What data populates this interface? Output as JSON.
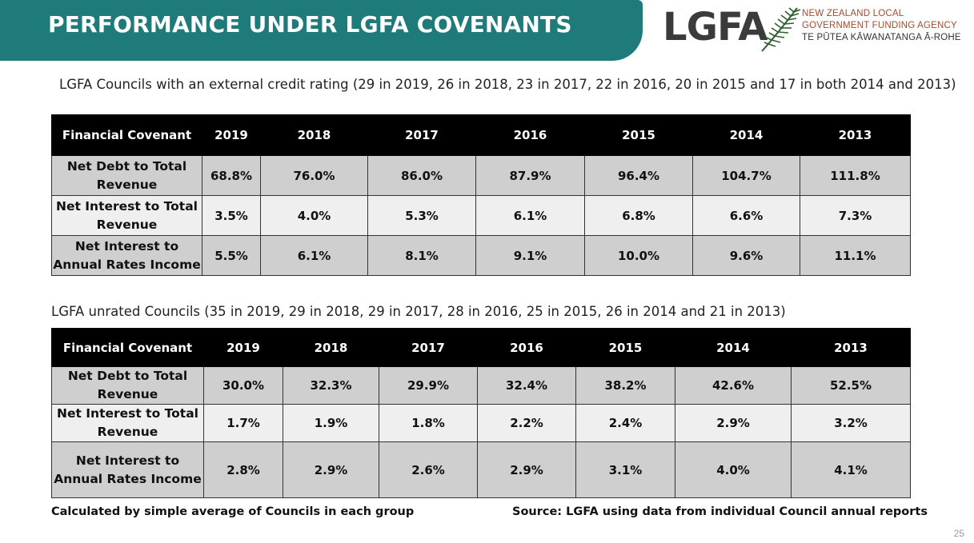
{
  "header": {
    "title": "PERFORMANCE UNDER LGFA COVENANTS"
  },
  "logo": {
    "wordmark": "LGFA",
    "line1": "NEW ZEALAND LOCAL",
    "line2": "GOVERNMENT FUNDING AGENCY",
    "line3": "TE PŪTEA KĀWANATANGA Ā-ROHE",
    "icon": "fern-icon"
  },
  "rated": {
    "caption": "LGFA Councils with an external credit rating (29 in 2019, 26 in 2018, 23 in 2017, 22 in 2016, 20 in 2015 and 17 in both 2014 and 2013)",
    "headers": [
      "Financial Covenant",
      "2019",
      "2018",
      "2017",
      "2016",
      "2015",
      "2014",
      "2013"
    ],
    "rows": [
      {
        "label": "Net Debt to Total Revenue",
        "values": [
          "68.8%",
          "76.0%",
          "86.0%",
          "87.9%",
          "96.4%",
          "104.7%",
          "111.8%"
        ]
      },
      {
        "label": "Net Interest to Total Revenue",
        "values": [
          "3.5%",
          "4.0%",
          "5.3%",
          "6.1%",
          "6.8%",
          "6.6%",
          "7.3%"
        ]
      },
      {
        "label": "Net Interest to Annual Rates Income",
        "values": [
          "5.5%",
          "6.1%",
          "8.1%",
          "9.1%",
          "10.0%",
          "9.6%",
          "11.1%"
        ]
      }
    ]
  },
  "unrated": {
    "caption": "LGFA unrated Councils (35 in 2019, 29 in 2018, 29 in 2017, 28 in 2016, 25 in 2015, 26 in 2014 and 21 in 2013)",
    "headers": [
      "Financial Covenant",
      "2019",
      "2018",
      "2017",
      "2016",
      "2015",
      "2014",
      "2013"
    ],
    "rows": [
      {
        "label": "Net Debt to Total Revenue",
        "values": [
          "30.0%",
          "32.3%",
          "29.9%",
          "32.4%",
          "38.2%",
          "42.6%",
          "52.5%"
        ]
      },
      {
        "label": "Net Interest to Total Revenue",
        "values": [
          "1.7%",
          "1.9%",
          "1.8%",
          "2.2%",
          "2.4%",
          "2.9%",
          "3.2%"
        ]
      },
      {
        "label": "Net Interest to Annual Rates Income",
        "values": [
          "2.8%",
          "2.9%",
          "2.6%",
          "2.9%",
          "3.1%",
          "4.0%",
          "4.1%"
        ]
      }
    ]
  },
  "footer": {
    "note_left": "Calculated by simple average of Councils in each group",
    "note_right": "Source: LGFA using data from individual Council annual reports",
    "page_number": "25"
  },
  "colors": {
    "header_band": "#1f7a7a",
    "table_header": "#000000",
    "row_grey": "#cfcfcf",
    "row_light": "#efefef",
    "logo_accent": "#a64a2b"
  }
}
